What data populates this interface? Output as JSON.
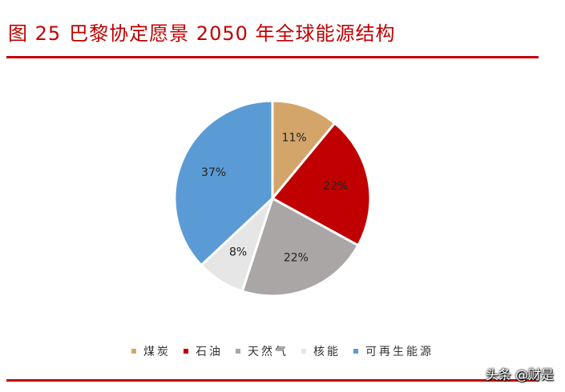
{
  "header": {
    "figure_number": "图 25",
    "title": "巴黎协定愿景 2050 年全球能源结构"
  },
  "chart_data": {
    "type": "pie",
    "title": "",
    "slices": [
      {
        "label": "煤炭",
        "value": 11,
        "value_label": "11%",
        "color": "#d4a56a"
      },
      {
        "label": "石油",
        "value": 22,
        "value_label": "22%",
        "color": "#c00000"
      },
      {
        "label": "天然气",
        "value": 22,
        "value_label": "22%",
        "color": "#aaa6a6"
      },
      {
        "label": "核能",
        "value": 8,
        "value_label": "8%",
        "color": "#e6e6e6"
      },
      {
        "label": "可再生能源",
        "value": 37,
        "value_label": "37%",
        "color": "#5b9bd5"
      }
    ],
    "legend_position": "bottom"
  },
  "watermark": "头条 @财是"
}
